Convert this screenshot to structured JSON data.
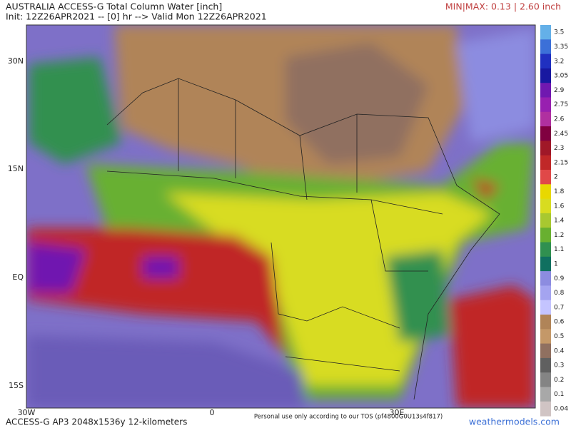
{
  "header": {
    "title": "AUSTRALIA ACCESS-G Total Column Water [inch]",
    "init": "Init: 12Z26APR2021 -- [0] hr --> Valid Mon 12Z26APR2021",
    "minmax": "MIN|MAX: 0.13 | 2.60 inch"
  },
  "map": {
    "lat_labels": [
      "30N",
      "15N",
      "EQ",
      "15S"
    ],
    "lon_labels": [
      "30W",
      "0",
      "30E"
    ]
  },
  "colorbar": {
    "labels": [
      "3.5",
      "3.35",
      "3.2",
      "3.05",
      "2.9",
      "2.75",
      "2.6",
      "2.45",
      "2.3",
      "2.15",
      "2",
      "1.8",
      "1.6",
      "1.4",
      "1.2",
      "1.1",
      "1",
      "0.9",
      "0.8",
      "0.7",
      "0.6",
      "0.5",
      "0.4",
      "0.3",
      "0.2",
      "0.1",
      "0.04"
    ],
    "colors": [
      "#64b0e8",
      "#3c70d8",
      "#2030c0",
      "#1818a0",
      "#7018b0",
      "#9820b0",
      "#b030a0",
      "#800040",
      "#a01828",
      "#c02828",
      "#e04848",
      "#e8d800",
      "#d8dc20",
      "#a8c830",
      "#68b030",
      "#309050",
      "#107060",
      "#8c8ce0",
      "#a4a4f0",
      "#c4c4ff",
      "#b08458",
      "#c49868",
      "#907060",
      "#606060",
      "#848484",
      "#a8a8a8",
      "#d0c4c4"
    ]
  },
  "footer": {
    "model": "ACCESS-G AP3 2048x1536y 12-kilometers",
    "note": "Personal use only according to our TOS (pf4800G0U13s4f817)",
    "site": "weathermodels.com"
  }
}
